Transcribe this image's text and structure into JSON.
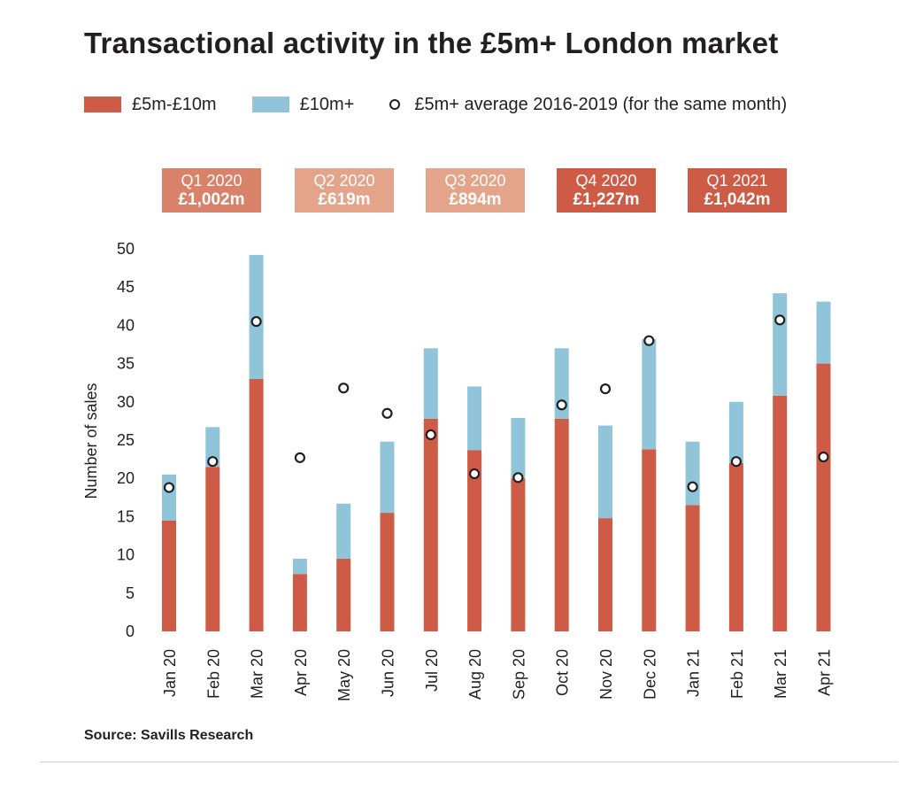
{
  "title": "Transactional activity in the £5m+ London market",
  "legend": {
    "series1": "£5m-£10m",
    "series2": "£10m+",
    "average": "£5m+ average 2016-2019 (for the same month)"
  },
  "colors": {
    "series1": "#cd5b45",
    "series2": "#8fc4d9",
    "q_light": "#e4a48a",
    "q_dark": "#cd5b45"
  },
  "quarters": [
    {
      "label": "Q1 2020",
      "value": "£1,002m",
      "shade": "mid"
    },
    {
      "label": "Q2 2020",
      "value": "£619m",
      "shade": "light"
    },
    {
      "label": "Q3 2020",
      "value": "£894m",
      "shade": "light"
    },
    {
      "label": "Q4 2020",
      "value": "£1,227m",
      "shade": "dark"
    },
    {
      "label": "Q1 2021",
      "value": "£1,042m",
      "shade": "dark"
    }
  ],
  "source": "Source:  Savills Research",
  "chart_data": {
    "type": "bar",
    "stacked": true,
    "categories": [
      "Jan 20",
      "Feb 20",
      "Mar 20",
      "Apr 20",
      "May 20",
      "Jun 20",
      "Jul 20",
      "Aug 20",
      "Sep 20",
      "Oct 20",
      "Nov 20",
      "Dec 20",
      "Jan 21",
      "Feb 21",
      "Mar 21",
      "Apr 21"
    ],
    "series": [
      {
        "name": "£5m-£10m",
        "values": [
          14.5,
          21.5,
          33,
          7.5,
          9.5,
          15.5,
          27.8,
          23.7,
          20,
          27.8,
          14.8,
          23.8,
          16.5,
          22,
          30.8,
          35
        ]
      },
      {
        "name": "£10m+",
        "values": [
          6,
          5.2,
          16.2,
          2,
          7.2,
          9.3,
          9.2,
          8.3,
          7.9,
          9.2,
          12.1,
          14.4,
          8.3,
          8,
          13.4,
          8.1
        ]
      }
    ],
    "average": {
      "name": "£5m+ average 2016-2019 (for the same month)",
      "values": [
        18.8,
        22.2,
        40.5,
        22.7,
        31.8,
        28.5,
        25.7,
        20.6,
        20.1,
        29.6,
        31.7,
        38,
        18.9,
        22.2,
        40.7,
        22.8
      ]
    },
    "ylabel": "Number of sales",
    "ylim": [
      0,
      50
    ],
    "yticks": [
      0,
      5,
      10,
      15,
      20,
      25,
      30,
      35,
      40,
      45,
      50
    ],
    "grid": false
  }
}
